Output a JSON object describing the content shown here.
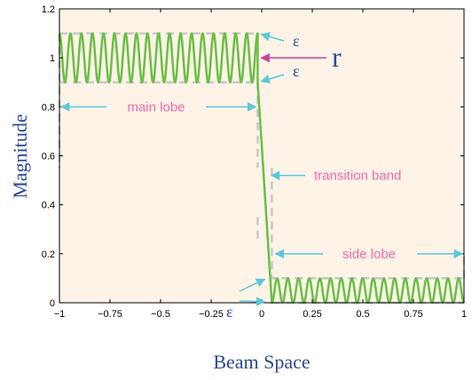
{
  "chart_data": {
    "type": "line",
    "title": "",
    "xlabel": "Beam Space",
    "ylabel": "Magnitude",
    "xlim": [
      -1,
      1
    ],
    "ylim": [
      0,
      1.2
    ],
    "xticks": [
      "−1",
      "−0.75",
      "−0.5",
      "−0.25",
      "0",
      "0.25",
      "0.5",
      "0.75",
      "1"
    ],
    "yticks": [
      "0",
      "0.2",
      "0.4",
      "0.6",
      "0.8",
      "1",
      "1.2"
    ],
    "grid": false,
    "background_color": "#fdf3e7",
    "series": [
      {
        "style": "solid",
        "color": "#6abf45",
        "description_points": {
          "passband": {
            "x_range": [
              -1,
              -0.02
            ],
            "center": 1.0,
            "ripple": 0.1,
            "cycles": 18
          },
          "transition": {
            "x": [
              -0.02,
              0.05
            ],
            "y": [
              0.9,
              0.0
            ]
          },
          "stopband": {
            "x_range": [
              0.05,
              1
            ],
            "center": 0.05,
            "ripple": 0.05,
            "cycles": 18
          }
        }
      }
    ],
    "bounds": {
      "color": "#c8c8c8",
      "style": "dashed",
      "passband_upper": 1.1,
      "passband_lower": 0.9,
      "passband_edge": -0.02,
      "stopband_edge": 0.05,
      "stopband_upper": 0.1
    },
    "annotations": {
      "main_lobe": "main lobe",
      "transition_band": "transition band",
      "side_lobe": "side lobe",
      "epsilon": "ε",
      "r": "r"
    },
    "annotation_colors": {
      "arrow": "#5bc8dc",
      "r_arrow": "#c8449a",
      "text": "#f06aa8"
    }
  }
}
